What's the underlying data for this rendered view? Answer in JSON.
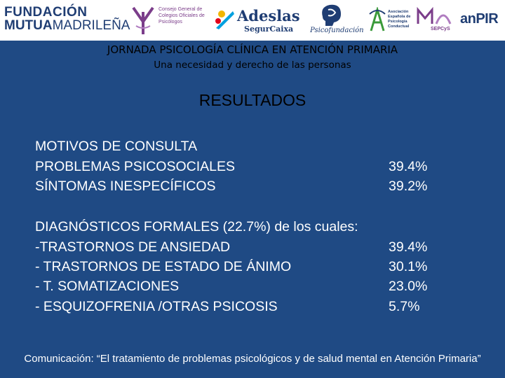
{
  "logos": {
    "fmm_line1": "FUNDACIÓN",
    "fmm_line2a": "MUTUA",
    "fmm_line2b": "MADRILEÑA",
    "cgcop_text": "Consejo General de Colegios Oficiales de Psicólogos",
    "adeslas_name": "Adeslas",
    "adeslas_sub": "SegurCaixa",
    "psi_text": "Psicofundación",
    "aepc_text": "Asociación Española de Psicología Conductual",
    "sepcys_text": "SEPCyS",
    "anpir_text": "anPIR"
  },
  "header": {
    "title": "JORNADA PSICOLOGÍA CLÍNICA EN ATENCIÓN PRIMARIA",
    "subtitle": "Una necesidad y derecho de las personas"
  },
  "section_heading": "RESULTADOS",
  "motivos": {
    "heading": "MOTIVOS DE CONSULTA",
    "items": [
      {
        "label": "PROBLEMAS PSICOSOCIALES",
        "value": "39.4%"
      },
      {
        "label": "SÍNTOMAS INESPECÍFICOS",
        "value": "39.2%"
      }
    ]
  },
  "diagnosticos": {
    "heading": "DIAGNÓSTICOS FORMALES (22.7%) de los cuales:",
    "items": [
      {
        "label": "-TRASTORNOS DE ANSIEDAD",
        "value": "39.4%"
      },
      {
        "label": "- TRASTORNOS DE ESTADO DE ÁNIMO",
        "value": "30.1%"
      },
      {
        "label": "- T. SOMATIZACIONES",
        "value": "23.0%"
      },
      {
        "label": "- ESQUIZOFRENIA /OTRAS PSICOSIS",
        "value": "5.7%"
      }
    ]
  },
  "footer": "Comunicación: “El tratamiento  de problemas psicológicos y de salud mental en Atención Primaria”",
  "colors": {
    "background": "#1f4a84",
    "logo_bar": "#ffffff",
    "header_text": "#000000",
    "body_text": "#ffffff"
  }
}
